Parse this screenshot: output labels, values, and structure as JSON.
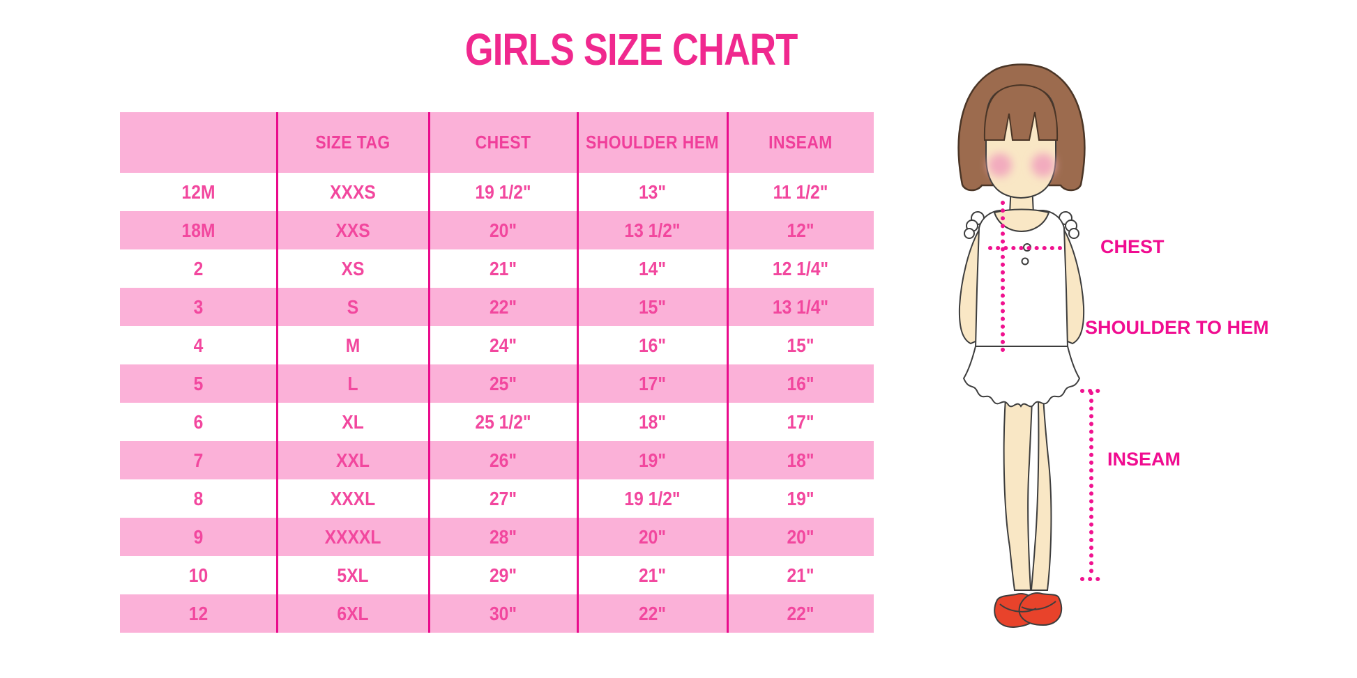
{
  "title": "GIRLS SIZE CHART",
  "table": {
    "columns": [
      "",
      "SIZE TAG",
      "CHEST",
      "SHOULDER HEM",
      "INSEAM"
    ],
    "rows": [
      [
        "12M",
        "XXXS",
        "19 1/2\"",
        "13\"",
        "11 1/2\""
      ],
      [
        "18M",
        "XXS",
        "20\"",
        "13 1/2\"",
        "12\""
      ],
      [
        "2",
        "XS",
        "21\"",
        "14\"",
        "12 1/4\""
      ],
      [
        "3",
        "S",
        "22\"",
        "15\"",
        "13 1/4\""
      ],
      [
        "4",
        "M",
        "24\"",
        "16\"",
        "15\""
      ],
      [
        "5",
        "L",
        "25\"",
        "17\"",
        "16\""
      ],
      [
        "6",
        "XL",
        "25 1/2\"",
        "18\"",
        "17\""
      ],
      [
        "7",
        "XXL",
        "26\"",
        "19\"",
        "18\""
      ],
      [
        "8",
        "XXXL",
        "27\"",
        "19 1/2\"",
        "19\""
      ],
      [
        "9",
        "XXXXL",
        "28\"",
        "20\"",
        "20\""
      ],
      [
        "10",
        "5XL",
        "29\"",
        "21\"",
        "21\""
      ],
      [
        "12",
        "6XL",
        "30\"",
        "22\"",
        "22\""
      ]
    ]
  },
  "chart_data": {
    "type": "table",
    "title": "GIRLS SIZE CHART",
    "columns": [
      "",
      "SIZE TAG",
      "CHEST",
      "SHOULDER HEM",
      "INSEAM"
    ],
    "rows": [
      [
        "12M",
        "XXXS",
        "19 1/2\"",
        "13\"",
        "11 1/2\""
      ],
      [
        "18M",
        "XXS",
        "20\"",
        "13 1/2\"",
        "12\""
      ],
      [
        "2",
        "XS",
        "21\"",
        "14\"",
        "12 1/4\""
      ],
      [
        "3",
        "S",
        "22\"",
        "15\"",
        "13 1/4\""
      ],
      [
        "4",
        "M",
        "24\"",
        "16\"",
        "15\""
      ],
      [
        "5",
        "L",
        "25\"",
        "17\"",
        "16\""
      ],
      [
        "6",
        "XL",
        "25 1/2\"",
        "18\"",
        "17\""
      ],
      [
        "7",
        "XXL",
        "26\"",
        "19\"",
        "18\""
      ],
      [
        "8",
        "XXXL",
        "27\"",
        "19 1/2\"",
        "19\""
      ],
      [
        "9",
        "XXXXL",
        "28\"",
        "20\"",
        "20\""
      ],
      [
        "10",
        "5XL",
        "29\"",
        "21\"",
        "21\""
      ],
      [
        "12",
        "6XL",
        "30\"",
        "22\"",
        "22\""
      ]
    ],
    "layout_hints": {
      "row_striping": [
        "white",
        "pink"
      ],
      "header_background": "pink",
      "column_dividers": true
    }
  },
  "figure_labels": {
    "chest": "CHEST",
    "shoulder_to_hem": "SHOULDER TO HEM",
    "inseam": "INSEAM"
  },
  "colors": {
    "row_pink": "#FBB1D8",
    "divider_magenta": "#EA0B8C",
    "cell_text_pink": "#F2479E",
    "title_pink": "#F0288E",
    "label_magenta": "#F00C90",
    "dotted_line": "#F0128F",
    "hair_brown": "#9C6B4E",
    "skin": "#F9E7C5",
    "cheek": "#F2ABBE",
    "shoe_red": "#E8432B"
  }
}
